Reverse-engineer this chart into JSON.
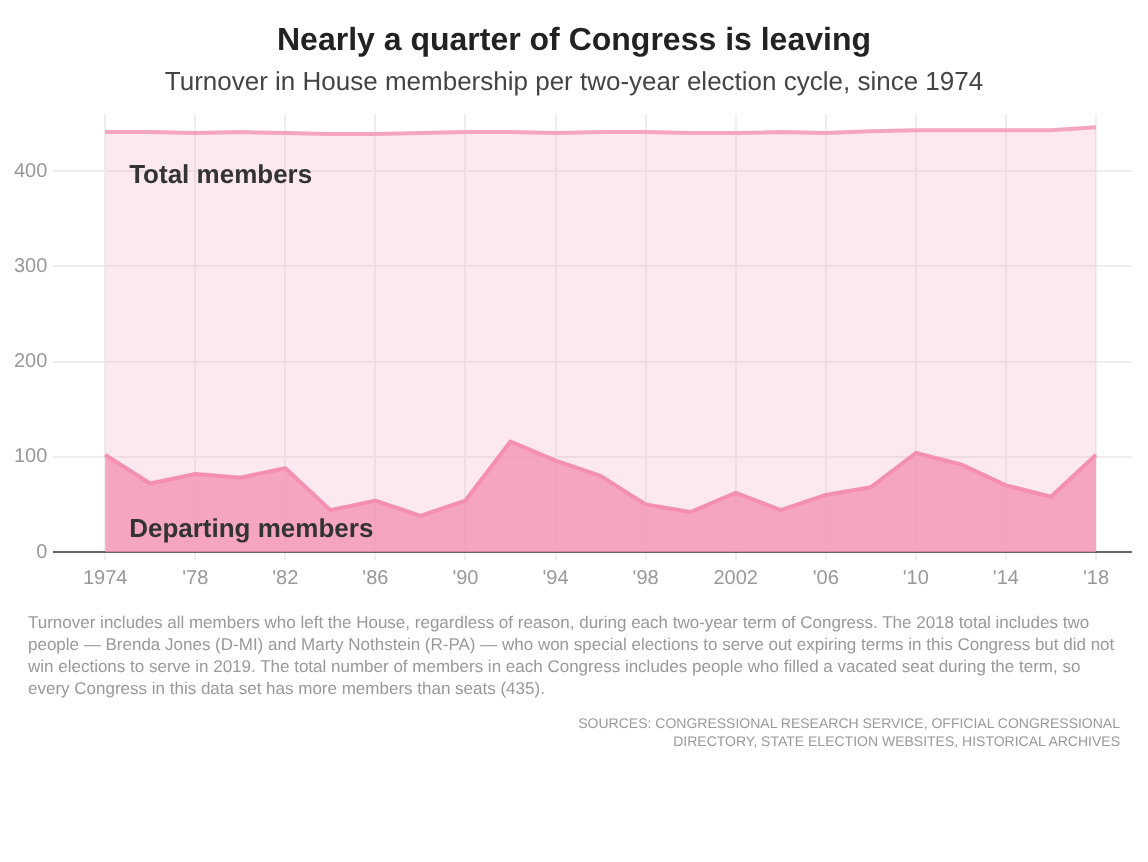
{
  "chart_data": {
    "type": "area",
    "title": "Nearly a quarter of Congress is leaving",
    "subtitle": "Turnover in House membership per two-year election cycle, since 1974",
    "x": [
      1974,
      1976,
      1978,
      1980,
      1982,
      1984,
      1986,
      1988,
      1990,
      1992,
      1994,
      1996,
      1998,
      2000,
      2002,
      2004,
      2006,
      2008,
      2010,
      2012,
      2014,
      2016,
      2018
    ],
    "series": [
      {
        "name": "Total members",
        "color": "#f4a5bf",
        "values": [
          441,
          441,
          440,
          441,
          440,
          439,
          439,
          440,
          441,
          441,
          440,
          441,
          441,
          440,
          440,
          441,
          440,
          442,
          443,
          443,
          443,
          443,
          446
        ]
      },
      {
        "name": "Departing members",
        "color": "#f48fb0",
        "values": [
          102,
          72,
          82,
          78,
          88,
          44,
          54,
          38,
          54,
          116,
          96,
          80,
          50,
          42,
          62,
          44,
          60,
          68,
          104,
          92,
          70,
          58,
          102
        ]
      }
    ],
    "xlim": [
      1971.7,
      2019.6
    ],
    "xticks": [
      {
        "value": 1974,
        "label": "1974"
      },
      {
        "value": 1978,
        "label": "'78"
      },
      {
        "value": 1982,
        "label": "'82"
      },
      {
        "value": 1986,
        "label": "'86"
      },
      {
        "value": 1990,
        "label": "'90"
      },
      {
        "value": 1994,
        "label": "'94"
      },
      {
        "value": 1998,
        "label": "'98"
      },
      {
        "value": 2002,
        "label": "2002"
      },
      {
        "value": 2006,
        "label": "'06"
      },
      {
        "value": 2010,
        "label": "'10"
      },
      {
        "value": 2014,
        "label": "'14"
      },
      {
        "value": 2018,
        "label": "'18"
      }
    ],
    "ylim": [
      0,
      460
    ],
    "yticks": [
      0,
      100,
      200,
      300,
      400
    ],
    "grid": true,
    "legend": false,
    "annotations": [
      "Turnover includes all members who left the House, regardless of reason, during each two-year term of Congress. The 2018 total includes two people — Brenda Jones (D-MI) and Marty Nothstein (R-PA) — who won special elections to serve out expiring terms in this Congress but did not win elections to serve in 2019. The total number of members in each Congress includes people who filled a vacated seat during the term, so every Congress in this data set has more members than seats (435).",
      "SOURCES: CONGRESSIONAL RESEARCH SERVICE, OFFICIAL CONGRESSIONAL DIRECTORY, STATE ELECTION WEBSITES, HISTORICAL ARCHIVES"
    ]
  }
}
